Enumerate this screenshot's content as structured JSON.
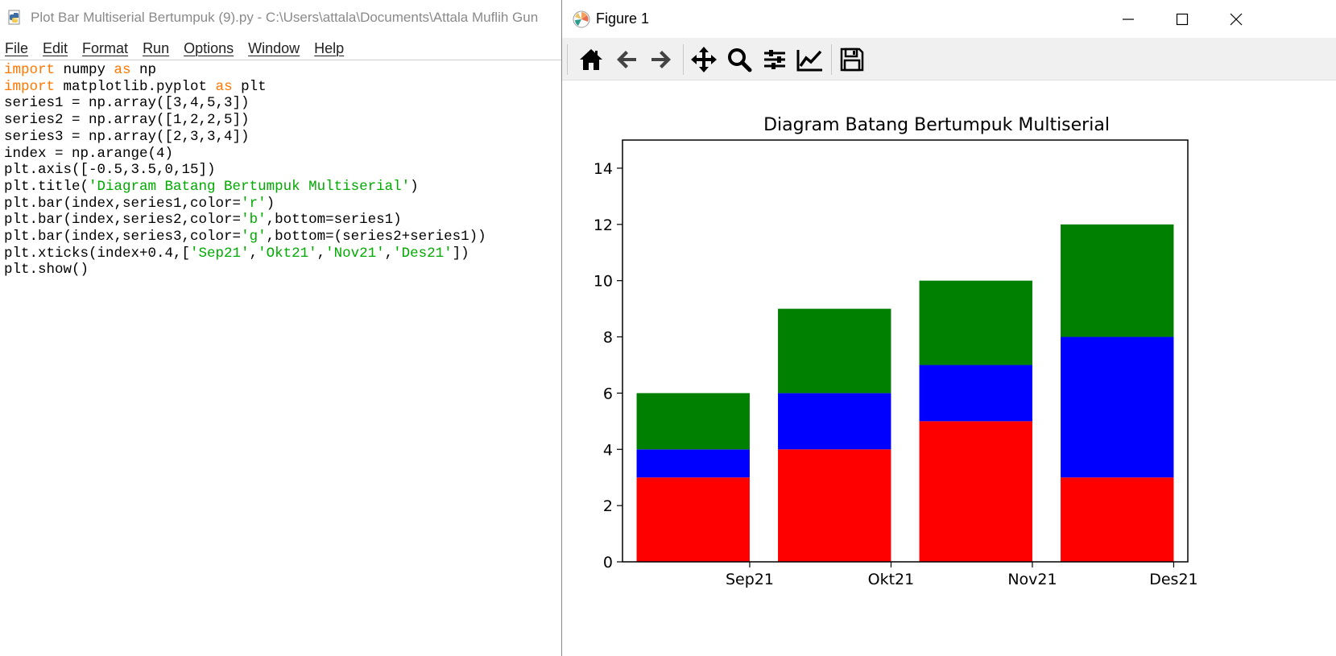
{
  "editor": {
    "title": "Plot Bar Multiserial Bertumpuk (9).py - C:\\Users\\attala\\Documents\\Attala Muflih Gun",
    "menu": [
      "File",
      "Edit",
      "Format",
      "Run",
      "Options",
      "Window",
      "Help"
    ],
    "code_lines": [
      [
        [
          "kw",
          "import"
        ],
        [
          "t",
          " numpy "
        ],
        [
          "kw",
          "as"
        ],
        [
          "t",
          " np"
        ]
      ],
      [
        [
          "kw",
          "import"
        ],
        [
          "t",
          " matplotlib.pyplot "
        ],
        [
          "kw",
          "as"
        ],
        [
          "t",
          " plt"
        ]
      ],
      [
        [
          "t",
          "series1 = np.array([3,4,5,3])"
        ]
      ],
      [
        [
          "t",
          "series2 = np.array([1,2,2,5])"
        ]
      ],
      [
        [
          "t",
          "series3 = np.array([2,3,3,4])"
        ]
      ],
      [
        [
          "t",
          "index = np.arange(4)"
        ]
      ],
      [
        [
          "t",
          "plt.axis([-0.5,3.5,0,15])"
        ]
      ],
      [
        [
          "t",
          "plt.title("
        ],
        [
          "st",
          "'Diagram Batang Bertumpuk Multiserial'"
        ],
        [
          "t",
          ")"
        ]
      ],
      [
        [
          "t",
          "plt.bar(index,series1,color="
        ],
        [
          "st",
          "'r'"
        ],
        [
          "t",
          ")"
        ]
      ],
      [
        [
          "t",
          "plt.bar(index,series2,color="
        ],
        [
          "st",
          "'b'"
        ],
        [
          "t",
          ",bottom=series1)"
        ]
      ],
      [
        [
          "t",
          "plt.bar(index,series3,color="
        ],
        [
          "st",
          "'g'"
        ],
        [
          "t",
          ",bottom=(series2+series1))"
        ]
      ],
      [
        [
          "t",
          "plt.xticks(index+0.4,["
        ],
        [
          "st",
          "'Sep21'"
        ],
        [
          "t",
          ","
        ],
        [
          "st",
          "'Okt21'"
        ],
        [
          "t",
          ","
        ],
        [
          "st",
          "'Nov21'"
        ],
        [
          "t",
          ","
        ],
        [
          "st",
          "'Des21'"
        ],
        [
          "t",
          "])"
        ]
      ],
      [
        [
          "t",
          "plt.show()"
        ]
      ]
    ]
  },
  "figure": {
    "title": "Figure 1",
    "toolbar": [
      "home-icon",
      "back-icon",
      "forward-icon",
      "pan-icon",
      "zoom-icon",
      "configure-subplots-icon",
      "edit-axis-icon",
      "save-icon"
    ],
    "colors": {
      "series1": "#ff0000",
      "series2": "#0000ff",
      "series3": "#008000"
    }
  },
  "chart_data": {
    "type": "bar",
    "stacked": true,
    "title": "Diagram Batang Bertumpuk Multiserial",
    "xlabel": "",
    "ylabel": "",
    "x": [
      0,
      1,
      2,
      3
    ],
    "xlim": [
      -0.5,
      3.5
    ],
    "ylim": [
      0,
      15
    ],
    "yticks": [
      0,
      2,
      4,
      6,
      8,
      10,
      12,
      14
    ],
    "xticks": [
      0.4,
      1.4,
      2.4,
      3.4
    ],
    "xticklabels": [
      "Sep21",
      "Okt21",
      "Nov21",
      "Des21"
    ],
    "bar_width": 0.8,
    "series": [
      {
        "color": "#ff0000",
        "values": [
          3,
          4,
          5,
          3
        ]
      },
      {
        "color": "#0000ff",
        "values": [
          1,
          2,
          2,
          5
        ]
      },
      {
        "color": "#008000",
        "values": [
          2,
          3,
          3,
          4
        ]
      }
    ],
    "grid": false,
    "legend": "none"
  }
}
